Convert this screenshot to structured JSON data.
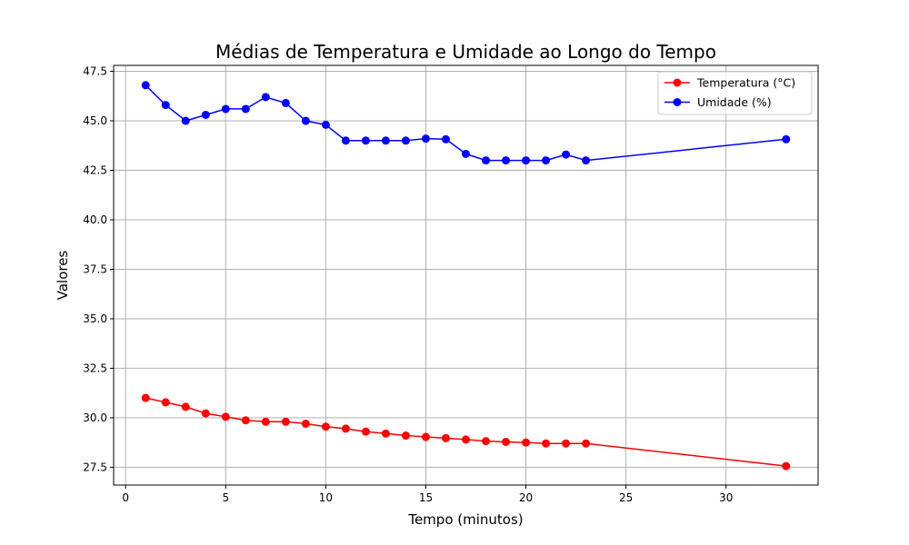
{
  "chart_data": {
    "type": "line",
    "title": "Médias de Temperatura e Umidade ao Longo do Tempo",
    "xlabel": "Tempo (minutos)",
    "ylabel": "Valores",
    "xlim": [
      -0.6,
      34.6
    ],
    "ylim": [
      26.6,
      47.8
    ],
    "xticks": [
      0,
      5,
      10,
      15,
      20,
      25,
      30
    ],
    "yticks": [
      27.5,
      30.0,
      32.5,
      35.0,
      37.5,
      40.0,
      42.5,
      45.0,
      47.5
    ],
    "xtick_labels": [
      "0",
      "5",
      "10",
      "15",
      "20",
      "25",
      "30"
    ],
    "ytick_labels": [
      "27.5",
      "30.0",
      "32.5",
      "35.0",
      "37.5",
      "40.0",
      "42.5",
      "45.0",
      "47.5"
    ],
    "grid": true,
    "legend_position": "top-right",
    "x": [
      1,
      2,
      3,
      4,
      5,
      6,
      7,
      8,
      9,
      10,
      11,
      12,
      13,
      14,
      15,
      16,
      17,
      18,
      19,
      20,
      21,
      22,
      23,
      33
    ],
    "series": [
      {
        "name": "Temperatura (°C)",
        "color": "#ff0000",
        "marker": "circle",
        "values": [
          31.0,
          30.78,
          30.55,
          30.22,
          30.05,
          29.87,
          29.8,
          29.8,
          29.7,
          29.55,
          29.45,
          29.3,
          29.2,
          29.1,
          29.03,
          28.97,
          28.9,
          28.82,
          28.78,
          28.75,
          28.7,
          28.7,
          28.7,
          27.56
        ]
      },
      {
        "name": "Umidade (%)",
        "color": "#0000ff",
        "marker": "circle",
        "values": [
          46.8,
          45.8,
          45.0,
          45.3,
          45.6,
          45.6,
          46.2,
          45.9,
          45.0,
          44.8,
          44.0,
          44.0,
          44.0,
          44.0,
          44.1,
          44.07,
          43.33,
          43.0,
          43.0,
          43.0,
          43.0,
          43.3,
          43.0,
          44.07
        ]
      }
    ]
  }
}
